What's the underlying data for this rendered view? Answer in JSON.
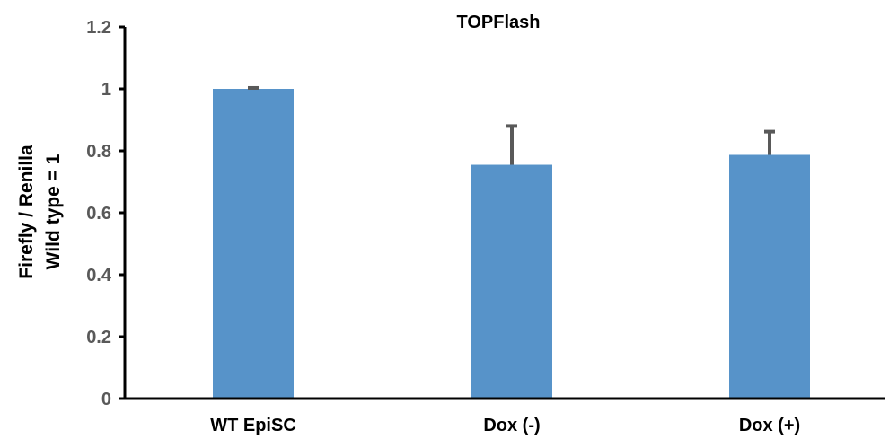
{
  "chart_data": {
    "type": "bar",
    "title": "TOPFlash",
    "ylabel_lines": [
      "Firefly / Renilla",
      "Wild type = 1"
    ],
    "xlabel": "",
    "categories": [
      "WT EpiSC",
      "Dox (-)",
      "Dox (+)"
    ],
    "values": [
      1.0,
      0.755,
      0.787
    ],
    "error_upper": [
      0.003,
      0.125,
      0.075
    ],
    "ylim": [
      0,
      1.2
    ],
    "yticks": [
      0,
      0.2,
      0.4,
      0.6,
      0.8,
      1,
      1.2
    ],
    "ytick_labels": [
      "0",
      "0.2",
      "0.4",
      "0.6",
      "0.8",
      "1",
      "1.2"
    ],
    "grid": false,
    "legend": "none",
    "colors": {
      "bar": "#5793C9",
      "error_bar": "#595959",
      "axis": "#000000",
      "tick_label": "#595959"
    }
  }
}
